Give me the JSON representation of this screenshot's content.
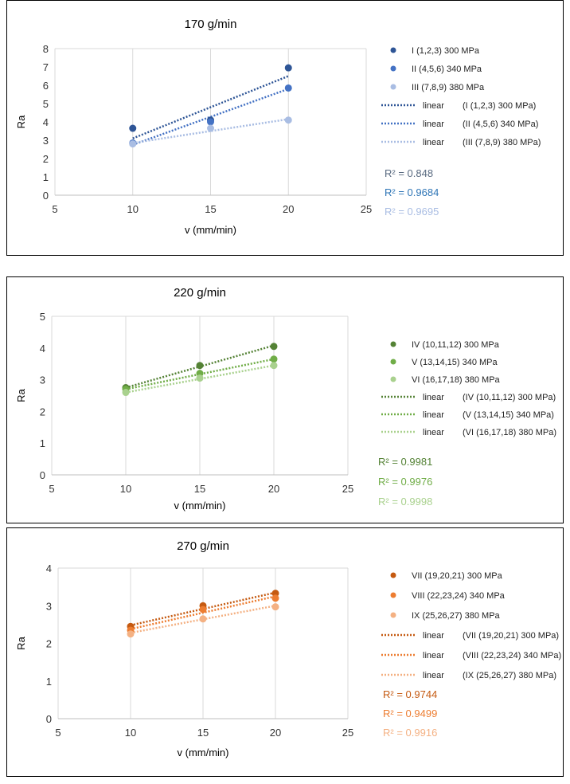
{
  "chart_data": [
    {
      "type": "scatter",
      "title": "170 g/min",
      "xlabel": "v (mm/min)",
      "ylabel": "Ra",
      "xlim": [
        5,
        25
      ],
      "ylim": [
        0,
        8
      ],
      "xticks": [
        5,
        10,
        15,
        20,
        25
      ],
      "yticks": [
        0,
        1,
        2,
        3,
        4,
        5,
        6,
        7,
        8
      ],
      "grid": "vertical",
      "legend": "right",
      "series": [
        {
          "name": "I (1,2,3) 300 MPa",
          "color": "#2e5596",
          "x": [
            10,
            15,
            20
          ],
          "y": [
            3.65,
            4.1,
            6.95
          ]
        },
        {
          "name": "II (4,5,6) 340 MPa",
          "color": "#4472c4",
          "x": [
            10,
            15,
            20
          ],
          "y": [
            2.85,
            4.0,
            5.85
          ]
        },
        {
          "name": "III (7,8,9) 380 MPa",
          "color": "#a9bde3",
          "x": [
            10,
            15,
            20
          ],
          "y": [
            2.8,
            3.65,
            4.1
          ]
        }
      ],
      "trendlines": [
        {
          "label": "linear",
          "series": "(I (1,2,3) 300 MPa)",
          "color": "#2e5596",
          "x": [
            10,
            20
          ],
          "y": [
            3.1,
            6.5
          ],
          "r2": "R² = 0.848",
          "r2_color": "#596a80"
        },
        {
          "label": "linear",
          "series": "(II (4,5,6) 340 MPa)",
          "color": "#4472c4",
          "x": [
            10,
            20
          ],
          "y": [
            2.75,
            5.8
          ],
          "r2": "R² = 0.9684",
          "r2_color": "#2e75b6"
        },
        {
          "label": "linear",
          "series": "(III (7,8,9) 380 MPa)",
          "color": "#a9bde3",
          "x": [
            10,
            20
          ],
          "y": [
            2.85,
            4.15
          ],
          "r2": "R² = 0.9695",
          "r2_color": "#a9bde3"
        }
      ]
    },
    {
      "type": "scatter",
      "title": "220 g/min",
      "xlabel": "v (mm/min)",
      "ylabel": "Ra",
      "xlim": [
        5,
        25
      ],
      "ylim": [
        0,
        5
      ],
      "xticks": [
        5,
        10,
        15,
        20,
        25
      ],
      "yticks": [
        0,
        1,
        2,
        3,
        4,
        5
      ],
      "grid": "vertical",
      "legend": "right",
      "series": [
        {
          "name": "IV (10,11,12) 300 MPa",
          "color": "#548235",
          "x": [
            10,
            15,
            20
          ],
          "y": [
            2.75,
            3.45,
            4.05
          ]
        },
        {
          "name": "V (13,14,15) 340 MPa",
          "color": "#70ad47",
          "x": [
            10,
            15,
            20
          ],
          "y": [
            2.7,
            3.2,
            3.65
          ]
        },
        {
          "name": "VI (16,17,18) 380 MPa",
          "color": "#a9d18e",
          "x": [
            10,
            15,
            20
          ],
          "y": [
            2.6,
            3.05,
            3.45
          ]
        }
      ],
      "trendlines": [
        {
          "label": "linear",
          "series": "(IV (10,11,12) 300 MPa)",
          "color": "#548235",
          "x": [
            10,
            20
          ],
          "y": [
            2.75,
            4.08
          ],
          "r2": "R² = 0.9981",
          "r2_color": "#548235"
        },
        {
          "label": "linear",
          "series": "(V (13,14,15) 340 MPa)",
          "color": "#70ad47",
          "x": [
            10,
            20
          ],
          "y": [
            2.7,
            3.65
          ],
          "r2": "R² = 0.9976",
          "r2_color": "#70ad47"
        },
        {
          "label": "linear",
          "series": "(VI (16,17,18) 380 MPa)",
          "color": "#a9d18e",
          "x": [
            10,
            20
          ],
          "y": [
            2.6,
            3.45
          ],
          "r2": "R² = 0.9998",
          "r2_color": "#a9d18e"
        }
      ]
    },
    {
      "type": "scatter",
      "title": "270 g/min",
      "xlabel": "v (mm/min)",
      "ylabel": "Ra",
      "xlim": [
        5,
        25
      ],
      "ylim": [
        0,
        4
      ],
      "xticks": [
        5,
        10,
        15,
        20,
        25
      ],
      "yticks": [
        0,
        1,
        2,
        3,
        4
      ],
      "grid": "vertical",
      "legend": "right",
      "series": [
        {
          "name": "VII (19,20,21) 300 MPa",
          "color": "#c55a11",
          "x": [
            10,
            15,
            20
          ],
          "y": [
            2.45,
            3.0,
            3.33
          ]
        },
        {
          "name": "VIII (22,23,24) 340 MPa",
          "color": "#ed7d31",
          "x": [
            10,
            15,
            20
          ],
          "y": [
            2.35,
            2.9,
            3.2
          ]
        },
        {
          "name": "IX (25,26,27) 380 MPa",
          "color": "#f4b183",
          "x": [
            10,
            15,
            20
          ],
          "y": [
            2.25,
            2.65,
            2.97
          ]
        }
      ],
      "trendlines": [
        {
          "label": "linear",
          "series": "(VII (19,20,21) 300 MPa)",
          "color": "#c55a11",
          "x": [
            10,
            20
          ],
          "y": [
            2.48,
            3.35
          ],
          "r2": "R² = 0.9744",
          "r2_color": "#c55a11"
        },
        {
          "label": "linear",
          "series": "(VIII (22,23,24) 340 MPa)",
          "color": "#ed7d31",
          "x": [
            10,
            20
          ],
          "y": [
            2.38,
            3.25
          ],
          "r2": "R² = 0.9499",
          "r2_color": "#ed7d31"
        },
        {
          "label": "linear",
          "series": "(IX (25,26,27) 380 MPa)",
          "color": "#f4b183",
          "x": [
            10,
            20
          ],
          "y": [
            2.28,
            3.0
          ],
          "r2": "R² = 0.9916",
          "r2_color": "#f4b183"
        }
      ]
    }
  ]
}
